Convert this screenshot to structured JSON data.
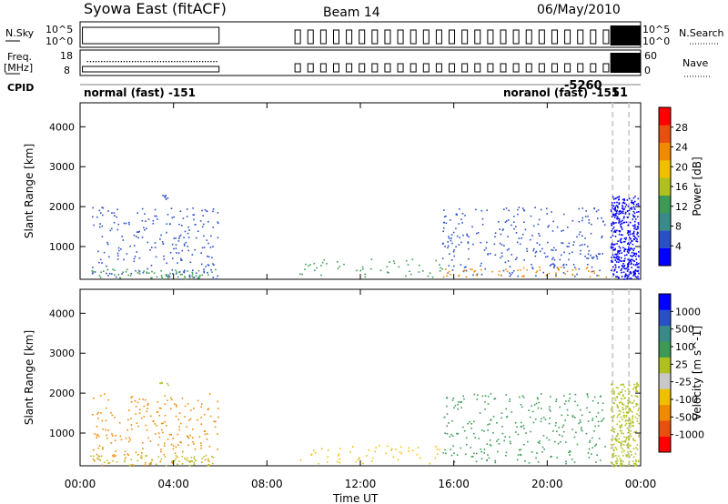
{
  "header": {
    "title": "Syowa East (fitACF)",
    "beam": "Beam 14",
    "date": "06/May/2010"
  },
  "strip_labels": {
    "nsky": "N.Sky",
    "freq_top": "Freq.",
    "freq_unit": "[MHz]",
    "cpid": "CPID",
    "nsearch": "N.Search",
    "nave": "Nave",
    "nsky_ticks": [
      "10^5",
      "10^0"
    ],
    "nsearch_ticks": [
      "10^5",
      "10^0"
    ],
    "freq_ticks": [
      "18",
      "8"
    ],
    "nave_ticks": [
      "60",
      "0"
    ]
  },
  "cpid_labels": {
    "left": "normal (fast) -151",
    "right_overlap": "noranol (fast) -151",
    "right_upper": "-5260",
    "right_tail": "51"
  },
  "time_axis": {
    "xlabel": "Time UT",
    "tick_labels": [
      "00:00",
      "04:00",
      "08:00",
      "12:00",
      "16:00",
      "20:00",
      "00:00"
    ],
    "hours": [
      0,
      4,
      8,
      12,
      16,
      20,
      24
    ]
  },
  "chart_data": [
    {
      "type": "heatmap",
      "name": "power-panel",
      "ylabel": "Slant Range [km]",
      "yticks": [
        1000,
        2000,
        3000,
        4000
      ],
      "ylim": [
        180,
        4600
      ],
      "xlim": [
        0,
        24
      ],
      "colorbar": {
        "label": "Power [dB]",
        "ticks": [
          "28",
          "24",
          "20",
          "16",
          "12",
          "8",
          "4"
        ],
        "colors": [
          "#0000ff",
          "#2a50c8",
          "#3a8a8a",
          "#3c9a55",
          "#b0c020",
          "#f0c000",
          "#f08a00",
          "#e85010",
          "#ff0000"
        ]
      },
      "patches": [
        {
          "t0": 0.5,
          "t1": 5.9,
          "r0": 200,
          "r1": 2000,
          "color": "#2a50c8",
          "density": 0.12
        },
        {
          "t0": 0.3,
          "t1": 5.8,
          "r0": 200,
          "r1": 450,
          "color": "#3c9a55",
          "density": 0.25
        },
        {
          "t0": 3.3,
          "t1": 3.8,
          "r0": 2200,
          "r1": 2300,
          "color": "#2a50c8",
          "density": 0.6
        },
        {
          "t0": 9.3,
          "t1": 15.5,
          "r0": 250,
          "r1": 700,
          "color": "#3c9a55",
          "density": 0.1
        },
        {
          "t0": 15.5,
          "t1": 22.5,
          "r0": 250,
          "r1": 2000,
          "color": "#2a50c8",
          "density": 0.12
        },
        {
          "t0": 15.5,
          "t1": 22.5,
          "r0": 250,
          "r1": 500,
          "color": "#f08a00",
          "density": 0.18
        },
        {
          "t0": 22.7,
          "t1": 23.9,
          "r0": 180,
          "r1": 2280,
          "color": "#0000ff",
          "density": 0.85
        }
      ]
    },
    {
      "type": "heatmap",
      "name": "velocity-panel",
      "ylabel": "Slant Range [km]",
      "yticks": [
        1000,
        2000,
        3000,
        4000
      ],
      "ylim": [
        180,
        4600
      ],
      "xlim": [
        0,
        24
      ],
      "colorbar": {
        "label": "Velocity [m s^-1]",
        "ticks": [
          "1000",
          "500",
          "100",
          "25",
          "-25",
          "-100",
          "-500",
          "-1000"
        ],
        "colors": [
          "#ff0000",
          "#e85010",
          "#f08a00",
          "#f0c000",
          "#c8c8c8",
          "#b0c020",
          "#3c9a55",
          "#3a8a8a",
          "#2a50c8",
          "#0000ff"
        ]
      },
      "patches": [
        {
          "t0": 0.5,
          "t1": 5.9,
          "r0": 200,
          "r1": 2000,
          "color": "#f08a00",
          "density": 0.12
        },
        {
          "t0": 0.3,
          "t1": 5.8,
          "r0": 200,
          "r1": 450,
          "color": "#b0c020",
          "density": 0.25
        },
        {
          "t0": 3.3,
          "t1": 3.8,
          "r0": 2200,
          "r1": 2300,
          "color": "#b0c020",
          "density": 0.6
        },
        {
          "t0": 9.3,
          "t1": 15.5,
          "r0": 250,
          "r1": 700,
          "color": "#f0c000",
          "density": 0.1
        },
        {
          "t0": 15.5,
          "t1": 22.5,
          "r0": 250,
          "r1": 2000,
          "color": "#3c9a55",
          "density": 0.12
        },
        {
          "t0": 22.7,
          "t1": 23.9,
          "r0": 180,
          "r1": 2280,
          "color": "#b0c020",
          "density": 0.6
        }
      ]
    }
  ]
}
